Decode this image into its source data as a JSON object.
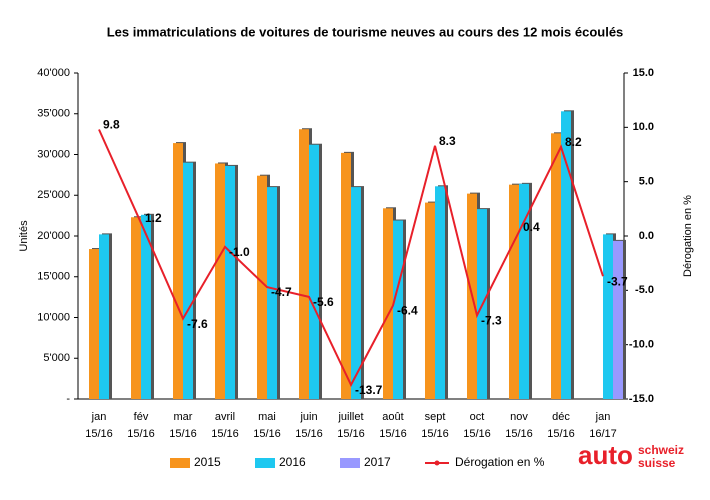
{
  "chart_data": {
    "type": "bar-line",
    "title": "Les immatriculations de voitures de tourisme neuves au cours des 12 mois écoulés",
    "y_label": "Unités",
    "y2_label": "Dérogation en %",
    "categories": [
      [
        "jan",
        "15/16"
      ],
      [
        "fév",
        "15/16"
      ],
      [
        "mar",
        "15/16"
      ],
      [
        "avril",
        "15/16"
      ],
      [
        "mai",
        "15/16"
      ],
      [
        "juin",
        "15/16"
      ],
      [
        "juillet",
        "15/16"
      ],
      [
        "août",
        "15/16"
      ],
      [
        "sept",
        "15/16"
      ],
      [
        "oct",
        "15/16"
      ],
      [
        "nov",
        "15/16"
      ],
      [
        "déc",
        "15/16"
      ],
      [
        "jan",
        "16/17"
      ]
    ],
    "series": [
      {
        "name": "2015",
        "type": "bar",
        "color": "#f7941d",
        "values": [
          18400,
          22300,
          31400,
          28900,
          27400,
          33100,
          30200,
          23400,
          24100,
          25200,
          26300,
          32600,
          null
        ]
      },
      {
        "name": "2016",
        "type": "bar",
        "color": "#1ec8f0",
        "values": [
          20200,
          22600,
          29000,
          28600,
          26000,
          31200,
          26000,
          21900,
          26100,
          23300,
          26400,
          35300,
          20200
        ]
      },
      {
        "name": "2017",
        "type": "bar",
        "color": "#9999ff",
        "values": [
          null,
          null,
          null,
          null,
          null,
          null,
          null,
          null,
          null,
          null,
          null,
          null,
          19400
        ]
      },
      {
        "name": "Dérogation en %",
        "type": "line",
        "axis": "y2",
        "color": "#e8202a",
        "values": [
          9.8,
          1.2,
          -7.6,
          -1.0,
          -4.7,
          -5.6,
          -13.7,
          -6.4,
          8.3,
          -7.3,
          0.4,
          8.2,
          -3.7
        ],
        "value_labels": [
          "9.8",
          "1.2",
          "-7.6",
          "-1.0",
          "-4.7",
          "-5.6",
          "-13.7",
          "-6.4",
          "8.3",
          "-7.3",
          "0.4",
          "8.2",
          "-3.7"
        ]
      }
    ],
    "ylim": [
      0,
      40000
    ],
    "yticks": [
      {
        "value": 0,
        "label": "-"
      },
      {
        "value": 5000,
        "label": "5'000"
      },
      {
        "value": 10000,
        "label": "10'000"
      },
      {
        "value": 15000,
        "label": "15'000"
      },
      {
        "value": 20000,
        "label": "20'000"
      },
      {
        "value": 25000,
        "label": "25'000"
      },
      {
        "value": 30000,
        "label": "30'000"
      },
      {
        "value": 35000,
        "label": "35'000"
      },
      {
        "value": 40000,
        "label": "40'000"
      }
    ],
    "y2lim": [
      -15,
      15
    ],
    "y2ticks": [
      {
        "value": -15,
        "label": "-15.0"
      },
      {
        "value": -10,
        "label": "-10.0"
      },
      {
        "value": -5,
        "label": "-5.0"
      },
      {
        "value": 0,
        "label": "0.0"
      },
      {
        "value": 5,
        "label": "5.0"
      },
      {
        "value": 10,
        "label": "10.0"
      },
      {
        "value": 15,
        "label": "15.0"
      }
    ],
    "legend": "bottom"
  },
  "logo": {
    "word": "auto",
    "lines": [
      "schweiz",
      "suisse"
    ]
  }
}
